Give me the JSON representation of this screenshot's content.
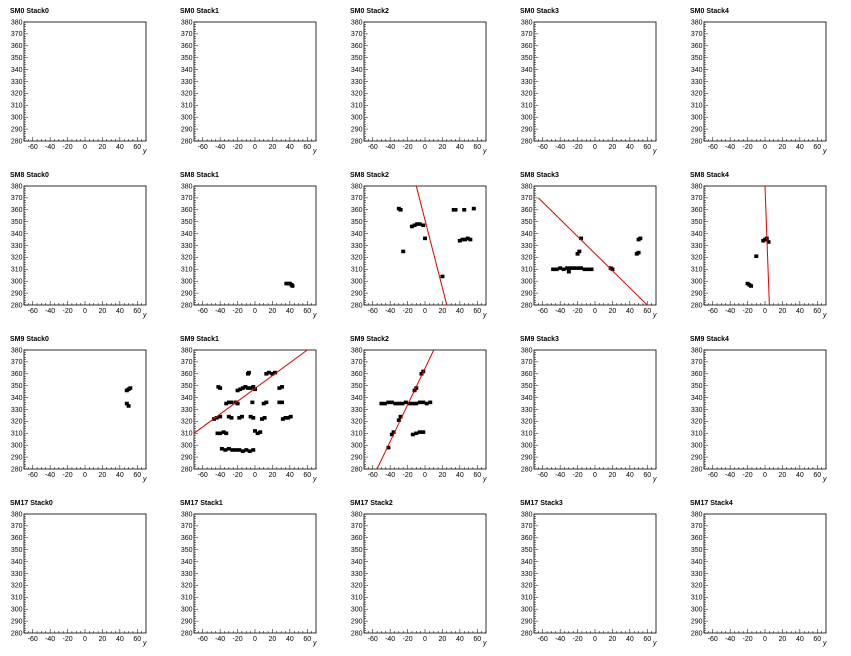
{
  "chart_data": [
    {
      "type": "scatter",
      "title": "SM0 Stack0",
      "xlabel": "y",
      "xlim": [
        -70,
        70
      ],
      "ylim": [
        280,
        380
      ],
      "points": [],
      "line": null
    },
    {
      "type": "scatter",
      "title": "SM0 Stack1",
      "xlabel": "y",
      "xlim": [
        -70,
        70
      ],
      "ylim": [
        280,
        380
      ],
      "points": [],
      "line": null
    },
    {
      "type": "scatter",
      "title": "SM0 Stack2",
      "xlabel": "y",
      "xlim": [
        -70,
        70
      ],
      "ylim": [
        280,
        380
      ],
      "points": [],
      "line": null
    },
    {
      "type": "scatter",
      "title": "SM0 Stack3",
      "xlabel": "y",
      "xlim": [
        -70,
        70
      ],
      "ylim": [
        280,
        380
      ],
      "points": [],
      "line": null
    },
    {
      "type": "scatter",
      "title": "SM0 Stack4",
      "xlabel": "y",
      "xlim": [
        -70,
        70
      ],
      "ylim": [
        280,
        380
      ],
      "points": [],
      "line": null
    },
    {
      "type": "scatter",
      "title": "SM8 Stack0",
      "xlabel": "y",
      "xlim": [
        -70,
        70
      ],
      "ylim": [
        280,
        380
      ],
      "points": [],
      "line": null
    },
    {
      "type": "scatter",
      "title": "SM8 Stack1",
      "xlabel": "y",
      "xlim": [
        -70,
        70
      ],
      "ylim": [
        280,
        380
      ],
      "points": [
        [
          36,
          298
        ],
        [
          38,
          298
        ],
        [
          40,
          298
        ],
        [
          42,
          297
        ],
        [
          43,
          296
        ]
      ],
      "line": null
    },
    {
      "type": "scatter",
      "title": "SM8 Stack2",
      "xlabel": "y",
      "xlim": [
        -70,
        70
      ],
      "ylim": [
        280,
        380
      ],
      "points": [
        [
          -15,
          346
        ],
        [
          -12,
          347
        ],
        [
          -9,
          348
        ],
        [
          -6,
          348
        ],
        [
          -2,
          347
        ],
        [
          0,
          336
        ],
        [
          -30,
          361
        ],
        [
          -28,
          360
        ],
        [
          33,
          360
        ],
        [
          35,
          360
        ],
        [
          45,
          360
        ],
        [
          56,
          361
        ],
        [
          40,
          334
        ],
        [
          43,
          335
        ],
        [
          46,
          335
        ],
        [
          49,
          336
        ],
        [
          52,
          335
        ],
        [
          -25,
          325
        ],
        [
          20,
          304
        ]
      ],
      "line": [
        [
          -10,
          380
        ],
        [
          25,
          280
        ]
      ]
    },
    {
      "type": "scatter",
      "title": "SM8 Stack3",
      "xlabel": "y",
      "xlim": [
        -70,
        70
      ],
      "ylim": [
        280,
        380
      ],
      "points": [
        [
          -48,
          310
        ],
        [
          -44,
          310
        ],
        [
          -40,
          311
        ],
        [
          -36,
          310
        ],
        [
          -32,
          311
        ],
        [
          -28,
          311
        ],
        [
          -24,
          311
        ],
        [
          -20,
          311
        ],
        [
          -16,
          311
        ],
        [
          -12,
          310
        ],
        [
          -8,
          310
        ],
        [
          -4,
          310
        ],
        [
          -30,
          308
        ],
        [
          -20,
          323
        ],
        [
          -18,
          325
        ],
        [
          -16,
          336
        ],
        [
          18,
          311
        ],
        [
          20,
          310
        ],
        [
          50,
          335
        ],
        [
          52,
          336
        ],
        [
          48,
          323
        ],
        [
          50,
          324
        ]
      ],
      "line": [
        [
          -65,
          370
        ],
        [
          60,
          280
        ]
      ]
    },
    {
      "type": "scatter",
      "title": "SM8 Stack4",
      "xlabel": "y",
      "xlim": [
        -70,
        70
      ],
      "ylim": [
        280,
        380
      ],
      "points": [
        [
          -20,
          298
        ],
        [
          -18,
          297
        ],
        [
          -16,
          296
        ],
        [
          -10,
          321
        ],
        [
          -2,
          334
        ],
        [
          0,
          335
        ],
        [
          2,
          336
        ],
        [
          4,
          333
        ]
      ],
      "line": [
        [
          0,
          380
        ],
        [
          5,
          280
        ]
      ]
    },
    {
      "type": "scatter",
      "title": "SM9 Stack0",
      "xlabel": "y",
      "xlim": [
        -70,
        70
      ],
      "ylim": [
        280,
        380
      ],
      "points": [
        [
          48,
          346
        ],
        [
          50,
          347
        ],
        [
          52,
          348
        ],
        [
          48,
          335
        ],
        [
          50,
          333
        ]
      ],
      "line": null
    },
    {
      "type": "scatter",
      "title": "SM9 Stack1",
      "xlabel": "y",
      "xlim": [
        -70,
        70
      ],
      "ylim": [
        280,
        380
      ],
      "points": [
        [
          -47,
          322
        ],
        [
          -44,
          323
        ],
        [
          -40,
          324
        ],
        [
          -43,
          310
        ],
        [
          -40,
          310
        ],
        [
          -36,
          311
        ],
        [
          -33,
          310
        ],
        [
          -42,
          349
        ],
        [
          -40,
          348
        ],
        [
          -33,
          335
        ],
        [
          -30,
          336
        ],
        [
          -27,
          336
        ],
        [
          -22,
          336
        ],
        [
          -20,
          335
        ],
        [
          -20,
          346
        ],
        [
          -17,
          347
        ],
        [
          -14,
          348
        ],
        [
          -11,
          349
        ],
        [
          -8,
          348
        ],
        [
          -5,
          348
        ],
        [
          -2,
          349
        ],
        [
          0,
          347
        ],
        [
          -8,
          360
        ],
        [
          -7,
          361
        ],
        [
          -30,
          324
        ],
        [
          -27,
          323
        ],
        [
          -18,
          323
        ],
        [
          -15,
          324
        ],
        [
          -5,
          324
        ],
        [
          -2,
          323
        ],
        [
          8,
          322
        ],
        [
          11,
          323
        ],
        [
          -3,
          336
        ],
        [
          10,
          335
        ],
        [
          13,
          336
        ],
        [
          0,
          312
        ],
        [
          3,
          310
        ],
        [
          6,
          311
        ],
        [
          13,
          360
        ],
        [
          16,
          361
        ],
        [
          20,
          360
        ],
        [
          23,
          361
        ],
        [
          -38,
          297
        ],
        [
          -34,
          296
        ],
        [
          -30,
          297
        ],
        [
          -26,
          296
        ],
        [
          -22,
          296
        ],
        [
          -18,
          296
        ],
        [
          -14,
          295
        ],
        [
          -10,
          296
        ],
        [
          -6,
          295
        ],
        [
          -2,
          296
        ],
        [
          28,
          348
        ],
        [
          31,
          349
        ],
        [
          28,
          336
        ],
        [
          31,
          336
        ],
        [
          32,
          322
        ],
        [
          35,
          323
        ],
        [
          38,
          323
        ],
        [
          41,
          324
        ]
      ],
      "line": [
        [
          -70,
          310
        ],
        [
          60,
          380
        ]
      ]
    },
    {
      "type": "scatter",
      "title": "SM9 Stack2",
      "xlabel": "y",
      "xlim": [
        -70,
        70
      ],
      "ylim": [
        280,
        380
      ],
      "points": [
        [
          -50,
          335
        ],
        [
          -46,
          335
        ],
        [
          -42,
          336
        ],
        [
          -38,
          336
        ],
        [
          -34,
          335
        ],
        [
          -30,
          335
        ],
        [
          -26,
          335
        ],
        [
          -22,
          336
        ],
        [
          -18,
          335
        ],
        [
          -14,
          335
        ],
        [
          -10,
          335
        ],
        [
          -6,
          336
        ],
        [
          -2,
          336
        ],
        [
          2,
          335
        ],
        [
          6,
          336
        ],
        [
          -42,
          298
        ],
        [
          -38,
          309
        ],
        [
          -36,
          311
        ],
        [
          -30,
          321
        ],
        [
          -28,
          324
        ],
        [
          -14,
          309
        ],
        [
          -10,
          310
        ],
        [
          -6,
          311
        ],
        [
          -2,
          311
        ],
        [
          -12,
          346
        ],
        [
          -10,
          348
        ],
        [
          -4,
          360
        ],
        [
          -2,
          362
        ]
      ],
      "line": [
        [
          -55,
          280
        ],
        [
          10,
          380
        ]
      ]
    },
    {
      "type": "scatter",
      "title": "SM9 Stack3",
      "xlabel": "y",
      "xlim": [
        -70,
        70
      ],
      "ylim": [
        280,
        380
      ],
      "points": [],
      "line": null
    },
    {
      "type": "scatter",
      "title": "SM9 Stack4",
      "xlabel": "y",
      "xlim": [
        -70,
        70
      ],
      "ylim": [
        280,
        380
      ],
      "points": [],
      "line": null
    },
    {
      "type": "scatter",
      "title": "SM17 Stack0",
      "xlabel": "y",
      "xlim": [
        -70,
        70
      ],
      "ylim": [
        280,
        380
      ],
      "points": [],
      "line": null
    },
    {
      "type": "scatter",
      "title": "SM17 Stack1",
      "xlabel": "y",
      "xlim": [
        -70,
        70
      ],
      "ylim": [
        280,
        380
      ],
      "points": [],
      "line": null
    },
    {
      "type": "scatter",
      "title": "SM17 Stack2",
      "xlabel": "y",
      "xlim": [
        -70,
        70
      ],
      "ylim": [
        280,
        380
      ],
      "points": [],
      "line": null
    },
    {
      "type": "scatter",
      "title": "SM17 Stack3",
      "xlabel": "y",
      "xlim": [
        -70,
        70
      ],
      "ylim": [
        280,
        380
      ],
      "points": [],
      "line": null
    },
    {
      "type": "scatter",
      "title": "SM17 Stack4",
      "xlabel": "y",
      "xlim": [
        -70,
        70
      ],
      "ylim": [
        280,
        380
      ],
      "points": [],
      "line": null
    }
  ],
  "axes": {
    "x_ticks": [
      -60,
      -40,
      -20,
      0,
      20,
      40,
      60
    ],
    "y_ticks": [
      280,
      290,
      300,
      310,
      320,
      330,
      340,
      350,
      360,
      370,
      380
    ]
  },
  "style": {
    "point_color": "#000000",
    "fit_line_color": "#e00000",
    "frame_color": "#000000",
    "background": "#ffffff"
  }
}
